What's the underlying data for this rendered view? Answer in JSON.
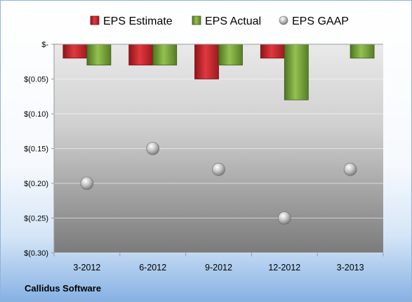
{
  "company": "Callidus Software",
  "chart_data": {
    "type": "bar",
    "title": "",
    "xlabel": "",
    "ylabel": "",
    "categories": [
      "3-2012",
      "6-2012",
      "9-2012",
      "12-2012",
      "3-2013"
    ],
    "ylim": [
      -0.3,
      0
    ],
    "yticks": [
      0,
      -0.05,
      -0.1,
      -0.15,
      -0.2,
      -0.25,
      -0.3
    ],
    "ytick_labels": [
      "$-",
      "$(0.05)",
      "$(0.10)",
      "$(0.15)",
      "$(0.20)",
      "$(0.25)",
      "$(0.30)"
    ],
    "grid": true,
    "legend_position": "top",
    "series": [
      {
        "name": "EPS Estimate",
        "kind": "bar",
        "color": "#c0272d",
        "values": [
          -0.02,
          -0.03,
          -0.05,
          -0.02,
          null
        ]
      },
      {
        "name": "EPS Actual",
        "kind": "bar",
        "color": "#77a23a",
        "values": [
          -0.03,
          -0.03,
          -0.03,
          -0.08,
          -0.02
        ]
      },
      {
        "name": "EPS GAAP",
        "kind": "scatter",
        "color": "#a6a6a6",
        "values": [
          -0.2,
          -0.15,
          -0.18,
          -0.25,
          -0.18
        ]
      }
    ]
  }
}
